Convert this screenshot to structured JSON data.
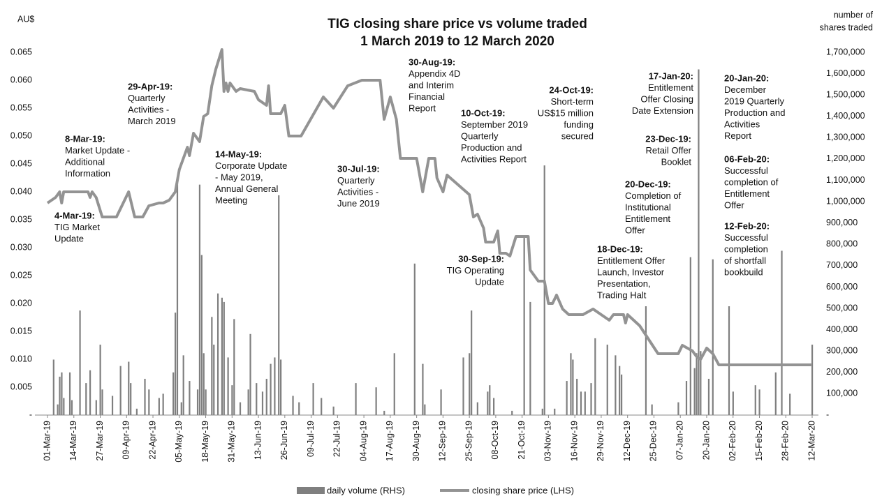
{
  "chart_data": {
    "type": "combo",
    "title": [
      "TIG closing share price vs volume traded",
      "1 March 2019 to 12 March 2020"
    ],
    "y_label": "AU$",
    "y2_label": [
      "number of",
      "shares traded"
    ],
    "xlim": [
      "01-Mar-19",
      "12-Mar-20"
    ],
    "xticks": [
      "01-Mar-19",
      "14-Mar-19",
      "27-Mar-19",
      "09-Apr-19",
      "22-Apr-19",
      "05-May-19",
      "18-May-19",
      "31-May-19",
      "13-Jun-19",
      "26-Jun-19",
      "09-Jul-19",
      "22-Jul-19",
      "04-Aug-19",
      "17-Aug-19",
      "30-Aug-19",
      "12-Sep-19",
      "25-Sep-19",
      "08-Oct-19",
      "21-Oct-19",
      "03-Nov-19",
      "16-Nov-19",
      "29-Nov-19",
      "12-Dec-19",
      "25-Dec-19",
      "07-Jan-20",
      "20-Jan-20",
      "02-Feb-20",
      "15-Feb-20",
      "28-Feb-20",
      "12-Mar-20"
    ],
    "ylim": [
      0,
      0.065
    ],
    "yticks": [
      {
        "value": 0,
        "label": "-"
      },
      0.005,
      {
        "value": 0.01,
        "label": "0.010"
      },
      0.015,
      {
        "value": 0.02,
        "label": "0.020"
      },
      0.025,
      {
        "value": 0.03,
        "label": "0.030"
      },
      0.035,
      {
        "value": 0.04,
        "label": "0.040"
      },
      0.045,
      {
        "value": 0.05,
        "label": "0.050"
      },
      0.055,
      {
        "value": 0.06,
        "label": "0.060"
      },
      0.065
    ],
    "y2lim": [
      0,
      1700000
    ],
    "y2ticks": [
      {
        "value": 0,
        "label": "-"
      },
      {
        "value": 100000,
        "label": "100,000"
      },
      {
        "value": 200000,
        "label": "200,000"
      },
      {
        "value": 300000,
        "label": "300,000"
      },
      {
        "value": 400000,
        "label": "400,000"
      },
      {
        "value": 500000,
        "label": "500,000"
      },
      {
        "value": 600000,
        "label": "600,000"
      },
      {
        "value": 700000,
        "label": "700,000"
      },
      {
        "value": 800000,
        "label": "800,000"
      },
      {
        "value": 900000,
        "label": "900,000"
      },
      {
        "value": 1000000,
        "label": "1,000,000"
      },
      {
        "value": 1100000,
        "label": "1,100,000"
      },
      {
        "value": 1200000,
        "label": "1,200,000"
      },
      {
        "value": 1300000,
        "label": "1,300,000"
      },
      {
        "value": 1400000,
        "label": "1,400,000"
      },
      {
        "value": 1500000,
        "label": "1,500,000"
      },
      {
        "value": 1600000,
        "label": "1,600,000"
      },
      {
        "value": 1700000,
        "label": "1,700,000"
      }
    ],
    "series": [
      {
        "name": "daily volume (RHS)",
        "type": "bar",
        "axis": "y2",
        "color": "#7f7f7f",
        "x": [
          "04-Mar-19",
          "06-Mar-19",
          "07-Mar-19",
          "08-Mar-19",
          "09-Mar-19",
          "12-Mar-19",
          "13-Mar-19",
          "17-Mar-19",
          "20-Mar-19",
          "22-Mar-19",
          "25-Mar-19",
          "27-Mar-19",
          "28-Mar-19",
          "02-Apr-19",
          "06-Apr-19",
          "10-Apr-19",
          "11-Apr-19",
          "14-Apr-19",
          "18-Apr-19",
          "20-Apr-19",
          "25-Apr-19",
          "27-Apr-19",
          "02-May-19",
          "03-May-19",
          "04-May-19",
          "06-May-19",
          "07-May-19",
          "10-May-19",
          "14-May-19",
          "15-May-19",
          "16-May-19",
          "17-May-19",
          "18-May-19",
          "21-May-19",
          "22-May-19",
          "24-May-19",
          "26-May-19",
          "27-May-19",
          "29-May-19",
          "31-May-19",
          "01-Jun-19",
          "04-Jun-19",
          "08-Jun-19",
          "09-Jun-19",
          "12-Jun-19",
          "15-Jun-19",
          "17-Jun-19",
          "19-Jun-19",
          "21-Jun-19",
          "23-Jun-19",
          "24-Jun-19",
          "30-Jun-19",
          "03-Jul-19",
          "10-Jul-19",
          "14-Jul-19",
          "20-Jul-19",
          "31-Jul-19",
          "10-Aug-19",
          "14-Aug-19",
          "19-Aug-19",
          "29-Aug-19",
          "02-Sep-19",
          "03-Sep-19",
          "11-Sep-19",
          "22-Sep-19",
          "25-Sep-19",
          "26-Sep-19",
          "29-Sep-19",
          "04-Oct-19",
          "05-Oct-19",
          "07-Oct-19",
          "16-Oct-19",
          "22-Oct-19",
          "25-Oct-19",
          "31-Oct-19",
          "01-Nov-19",
          "06-Nov-19",
          "12-Nov-19",
          "14-Nov-19",
          "15-Nov-19",
          "17-Nov-19",
          "19-Nov-19",
          "21-Nov-19",
          "24-Nov-19",
          "26-Nov-19",
          "02-Dec-19",
          "06-Dec-19",
          "08-Dec-19",
          "09-Dec-19",
          "21-Dec-19",
          "24-Dec-19",
          "06-Jan-20",
          "10-Jan-20",
          "12-Jan-20",
          "14-Jan-20",
          "15-Jan-20",
          "16-Jan-20",
          "17-Jan-20",
          "21-Jan-20",
          "23-Jan-20",
          "31-Jan-20",
          "02-Feb-20",
          "13-Feb-20",
          "15-Feb-20",
          "23-Feb-20",
          "26-Feb-20",
          "01-Mar-20",
          "12-Mar-20"
        ],
        "values": [
          260000,
          50000,
          180000,
          200000,
          80000,
          200000,
          70000,
          490000,
          150000,
          210000,
          70000,
          330000,
          120000,
          90000,
          230000,
          250000,
          150000,
          30000,
          170000,
          120000,
          80000,
          100000,
          200000,
          480000,
          1100000,
          60000,
          280000,
          160000,
          120000,
          1080000,
          750000,
          290000,
          120000,
          460000,
          330000,
          570000,
          550000,
          530000,
          270000,
          140000,
          450000,
          60000,
          120000,
          380000,
          150000,
          110000,
          170000,
          240000,
          270000,
          1030000,
          260000,
          90000,
          60000,
          150000,
          80000,
          40000,
          150000,
          130000,
          20000,
          290000,
          710000,
          240000,
          50000,
          120000,
          270000,
          290000,
          490000,
          60000,
          110000,
          140000,
          80000,
          20000,
          830000,
          530000,
          30000,
          1170000,
          30000,
          160000,
          290000,
          260000,
          170000,
          110000,
          110000,
          150000,
          360000,
          330000,
          280000,
          230000,
          190000,
          510000,
          50000,
          60000,
          160000,
          740000,
          220000,
          290000,
          1620000,
          300000,
          170000,
          730000,
          510000,
          110000,
          140000,
          120000,
          200000,
          770000,
          100000,
          330000
        ]
      },
      {
        "name": "closing share price (LHS)",
        "type": "line",
        "axis": "y",
        "color": "#939393",
        "x": [
          "01-Mar-19",
          "05-Mar-19",
          "07-Mar-19",
          "08-Mar-19",
          "09-Mar-19",
          "21-Mar-19",
          "22-Mar-19",
          "23-Mar-19",
          "25-Mar-19",
          "28-Mar-19",
          "04-Apr-19",
          "10-Apr-19",
          "13-Apr-19",
          "17-Apr-19",
          "20-Apr-19",
          "25-Apr-19",
          "27-Apr-19",
          "30-Apr-19",
          "03-May-19",
          "05-May-19",
          "09-May-19",
          "10-May-19",
          "12-May-19",
          "15-May-19",
          "17-May-19",
          "19-May-19",
          "21-May-19",
          "23-May-19",
          "26-May-19",
          "27-May-19",
          "28-May-19",
          "29-May-19",
          "30-May-19",
          "02-Jun-19",
          "04-Jun-19",
          "11-Jun-19",
          "13-Jun-19",
          "17-Jun-19",
          "18-Jun-19",
          "19-Jun-19",
          "24-Jun-19",
          "26-Jun-19",
          "28-Jun-19",
          "04-Jul-19",
          "15-Jul-19",
          "20-Jul-19",
          "27-Jul-19",
          "03-Aug-19",
          "12-Aug-19",
          "14-Aug-19",
          "17-Aug-19",
          "20-Aug-19",
          "22-Aug-19",
          "30-Aug-19",
          "02-Sep-19",
          "05-Sep-19",
          "08-Sep-19",
          "09-Sep-19",
          "12-Sep-19",
          "14-Sep-19",
          "25-Sep-19",
          "27-Sep-19",
          "29-Sep-19",
          "02-Oct-19",
          "03-Oct-19",
          "07-Oct-19",
          "09-Oct-19",
          "10-Oct-19",
          "13-Oct-19",
          "15-Oct-19",
          "18-Oct-19",
          "24-Oct-19",
          "25-Oct-19",
          "27-Oct-19",
          "29-Oct-19",
          "01-Nov-19",
          "03-Nov-19",
          "05-Nov-19",
          "07-Nov-19",
          "10-Nov-19",
          "13-Nov-19",
          "20-Nov-19",
          "25-Nov-19",
          "29-Nov-19",
          "03-Dec-19",
          "05-Dec-19",
          "10-Dec-19",
          "11-Dec-19",
          "12-Dec-19",
          "18-Dec-19",
          "27-Dec-19",
          "06-Jan-20",
          "08-Jan-20",
          "13-Jan-20",
          "15-Jan-20",
          "17-Jan-20",
          "20-Jan-20",
          "23-Jan-20",
          "26-Jan-20",
          "12-Mar-20"
        ],
        "values": [
          0.038,
          0.039,
          0.04,
          0.038,
          0.04,
          0.04,
          0.039,
          0.04,
          0.039,
          0.0355,
          0.0355,
          0.04,
          0.0355,
          0.0355,
          0.0375,
          0.038,
          0.038,
          0.0385,
          0.04,
          0.044,
          0.048,
          0.0465,
          0.0505,
          0.049,
          0.0535,
          0.054,
          0.059,
          0.062,
          0.0655,
          0.058,
          0.0595,
          0.058,
          0.0595,
          0.058,
          0.0585,
          0.058,
          0.0565,
          0.0555,
          0.059,
          0.054,
          0.054,
          0.0555,
          0.05,
          0.05,
          0.057,
          0.055,
          0.059,
          0.06,
          0.06,
          0.053,
          0.057,
          0.053,
          0.046,
          0.046,
          0.04,
          0.046,
          0.046,
          0.0425,
          0.04,
          0.043,
          0.0395,
          0.0355,
          0.036,
          0.0335,
          0.031,
          0.031,
          0.033,
          0.029,
          0.029,
          0.0285,
          0.032,
          0.032,
          0.026,
          0.025,
          0.024,
          0.024,
          0.02,
          0.02,
          0.0215,
          0.019,
          0.018,
          0.018,
          0.019,
          0.018,
          0.017,
          0.018,
          0.018,
          0.0165,
          0.018,
          0.016,
          0.011,
          0.011,
          0.0125,
          0.0115,
          0.0105,
          0.01,
          0.012,
          0.011,
          0.009,
          0.009
        ]
      }
    ],
    "annotations": [
      {
        "date": "8-Mar-19:",
        "text": [
          "Market Update -",
          "Additional",
          "Information"
        ]
      },
      {
        "date": "4-Mar-19:",
        "text": [
          "TIG Market",
          "Update"
        ]
      },
      {
        "date": "29-Apr-19:",
        "text": [
          "Quarterly",
          "Activities -",
          "March 2019"
        ]
      },
      {
        "date": "14-May-19:",
        "text": [
          "Corporate Update",
          "- May 2019,",
          "Annual General",
          "Meeting"
        ]
      },
      {
        "date": "30-Jul-19:",
        "text": [
          "Quarterly",
          "Activities -",
          "June 2019"
        ]
      },
      {
        "date": "30-Aug-19:",
        "text": [
          "Appendix 4D",
          "and Interim",
          "Financial",
          "Report"
        ]
      },
      {
        "date": "10-Oct-19:",
        "text": [
          "September 2019",
          "Quarterly",
          "Production and",
          "Activities Report"
        ]
      },
      {
        "date": "30-Sep-19:",
        "text": [
          "TIG Operating",
          "Update"
        ]
      },
      {
        "date": "24-Oct-19:",
        "text": [
          "Short-term",
          "US$15 million",
          "funding",
          "secured"
        ]
      },
      {
        "date": "17-Jan-20:",
        "text": [
          "Entitlement",
          "Offer Closing",
          "Date Extension"
        ]
      },
      {
        "date": "23-Dec-19:",
        "text": [
          "Retail Offer",
          "Booklet"
        ]
      },
      {
        "date": "20-Dec-19:",
        "text": [
          "Completion of",
          "Institutional",
          "Entitlement",
          "Offer"
        ]
      },
      {
        "date": "18-Dec-19:",
        "text": [
          "Entitlement Offer",
          "Launch, Investor",
          "Presentation,",
          "Trading Halt"
        ]
      },
      {
        "date": "20-Jan-20:",
        "text": [
          "December",
          "2019 Quarterly",
          "Production and",
          "Activities",
          "Report"
        ]
      },
      {
        "date": "06-Feb-20:",
        "text": [
          "Successful",
          "completion of",
          "Entitlement",
          "Offer"
        ]
      },
      {
        "date": "12-Feb-20:",
        "text": [
          "Successful",
          "completion",
          "of shortfall",
          "bookbuild"
        ]
      }
    ]
  }
}
